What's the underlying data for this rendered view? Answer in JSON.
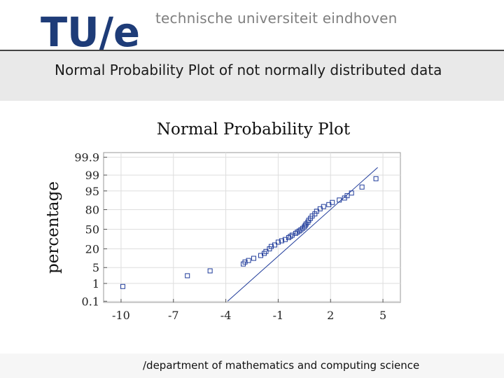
{
  "header": {
    "logo_text": "TU/e",
    "university_name": "technische universiteit eindhoven"
  },
  "slide": {
    "title": "Normal Probability Plot of not normally distributed data"
  },
  "footer": {
    "text": "/department of mathematics and computing science"
  },
  "colors": {
    "logo": "#1e3c78",
    "points": "#1f3b9a",
    "line": "#1f3b9a"
  },
  "chart_data": {
    "type": "scatter",
    "title": "Normal Probability Plot",
    "xlabel": "",
    "ylabel": "percentage",
    "xlim": [
      -11,
      6
    ],
    "xticks": [
      -10,
      -7,
      -4,
      -1,
      2,
      5
    ],
    "yticks": [
      0.1,
      1,
      5,
      20,
      50,
      80,
      95,
      99,
      99.9
    ],
    "y_scale": "normal-probability",
    "grid": true,
    "reference_line": {
      "x1": -3.9,
      "y1": 0.1,
      "x2": 4.7,
      "y2": 99.6
    },
    "points": [
      {
        "x": -9.9,
        "y": 0.7
      },
      {
        "x": -6.2,
        "y": 2.3
      },
      {
        "x": -4.9,
        "y": 3.7
      },
      {
        "x": -3.0,
        "y": 6.8
      },
      {
        "x": -2.9,
        "y": 8.0
      },
      {
        "x": -2.7,
        "y": 9.0
      },
      {
        "x": -2.4,
        "y": 10.6
      },
      {
        "x": -2.0,
        "y": 13.0
      },
      {
        "x": -1.8,
        "y": 15.0
      },
      {
        "x": -1.7,
        "y": 17.0
      },
      {
        "x": -1.5,
        "y": 20.0
      },
      {
        "x": -1.4,
        "y": 23.0
      },
      {
        "x": -1.2,
        "y": 25.0
      },
      {
        "x": -1.0,
        "y": 29.0
      },
      {
        "x": -0.8,
        "y": 31.0
      },
      {
        "x": -0.6,
        "y": 33.0
      },
      {
        "x": -0.4,
        "y": 36.0
      },
      {
        "x": -0.3,
        "y": 38.0
      },
      {
        "x": -0.2,
        "y": 40.0
      },
      {
        "x": 0.0,
        "y": 43.0
      },
      {
        "x": 0.1,
        "y": 45.0
      },
      {
        "x": 0.2,
        "y": 47.0
      },
      {
        "x": 0.3,
        "y": 49.0
      },
      {
        "x": 0.4,
        "y": 51.5
      },
      {
        "x": 0.5,
        "y": 54.0
      },
      {
        "x": 0.55,
        "y": 56.5
      },
      {
        "x": 0.6,
        "y": 59.0
      },
      {
        "x": 0.7,
        "y": 62.0
      },
      {
        "x": 0.75,
        "y": 65.0
      },
      {
        "x": 0.85,
        "y": 68.0
      },
      {
        "x": 0.95,
        "y": 71.5
      },
      {
        "x": 1.1,
        "y": 74.5
      },
      {
        "x": 1.2,
        "y": 78.0
      },
      {
        "x": 1.4,
        "y": 81.0
      },
      {
        "x": 1.6,
        "y": 83.5
      },
      {
        "x": 1.9,
        "y": 85.5
      },
      {
        "x": 2.1,
        "y": 87.5
      },
      {
        "x": 2.5,
        "y": 89.5
      },
      {
        "x": 2.8,
        "y": 91.0
      },
      {
        "x": 2.95,
        "y": 92.5
      },
      {
        "x": 3.2,
        "y": 94.0
      },
      {
        "x": 3.8,
        "y": 96.5
      },
      {
        "x": 4.6,
        "y": 98.5
      }
    ]
  }
}
